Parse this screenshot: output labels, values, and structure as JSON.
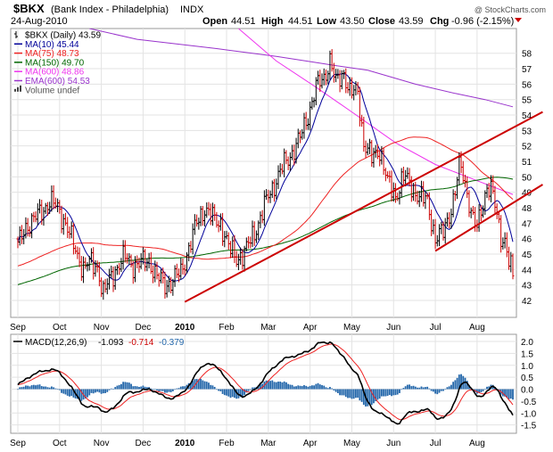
{
  "header": {
    "symbol": "$BKX",
    "name": "(Bank Index - Philadelphia)",
    "exchange": "INDX",
    "date": "24-Aug-2010",
    "open_label": "Open",
    "open": "44.51",
    "high_label": "High",
    "high": "44.51",
    "low_label": "Low",
    "low": "43.50",
    "close_label": "Close",
    "close": "43.59",
    "chg_label": "Chg",
    "chg": "-0.96 (-2.15%)"
  },
  "watermark": "@ StockCharts.com",
  "colors": {
    "price": "#000000",
    "down": "#cc0000",
    "ma10": "#000099",
    "ma75": "#ee2222",
    "ma150": "#006600",
    "ma600": "#ee33ee",
    "ema600": "#9933cc",
    "trend": "#cc0000",
    "macd_line": "#000000",
    "signal": "#ee2222",
    "hist": "#2266aa",
    "grid": "#e3e3e3"
  },
  "legend": [
    {
      "label": "$BKX (Daily) 43.59",
      "color": "#000000",
      "kind": "bar"
    },
    {
      "label": "MA(10) 45.44",
      "color": "#000099",
      "kind": "line"
    },
    {
      "label": "MA(75) 48.73",
      "color": "#ee2222",
      "kind": "line"
    },
    {
      "label": "MA(150) 49.70",
      "color": "#006600",
      "kind": "line"
    },
    {
      "label": "MA(600) 48.86",
      "color": "#ee33ee",
      "kind": "line"
    },
    {
      "label": "EMA(600) 54.53",
      "color": "#9933cc",
      "kind": "line"
    },
    {
      "label": "Volume undef",
      "color": "#555555",
      "kind": "vol"
    }
  ],
  "macd_header": {
    "label": "MACD(12,26,9)",
    "v1": "-1.093",
    "v2": "-0.714",
    "v3": "-0.379"
  },
  "chart_data": [
    {
      "type": "line",
      "title": "$BKX (Bank Index - Philadelphia) INDX",
      "x_tick_labels": [
        "Sep",
        "Oct",
        "Nov",
        "Dec",
        "2010",
        "Feb",
        "Mar",
        "Apr",
        "May",
        "Jun",
        "Jul",
        "Aug"
      ],
      "x_tick_pos": [
        0,
        21,
        42,
        63,
        84,
        105,
        126,
        147,
        168,
        189,
        210,
        231
      ],
      "x_range": [
        0,
        249
      ],
      "ylim": [
        40.9,
        59.6
      ],
      "y_ticks": [
        42,
        43,
        44,
        45,
        46,
        47,
        48,
        49,
        50,
        51,
        52,
        53,
        54,
        55,
        56,
        57,
        58
      ],
      "price_anchors": [
        [
          0,
          45.5
        ],
        [
          4,
          46.8
        ],
        [
          8,
          47.2
        ],
        [
          12,
          47.8
        ],
        [
          16,
          48.4
        ],
        [
          20,
          48.0
        ],
        [
          24,
          47.0
        ],
        [
          29,
          45.2
        ],
        [
          33,
          44.1
        ],
        [
          36,
          44.4
        ],
        [
          40,
          44.2
        ],
        [
          43,
          42.4
        ],
        [
          46,
          43.3
        ],
        [
          50,
          44.2
        ],
        [
          54,
          44.8
        ],
        [
          58,
          44.3
        ],
        [
          62,
          44.4
        ],
        [
          66,
          44.6
        ],
        [
          70,
          43.5
        ],
        [
          74,
          43.0
        ],
        [
          78,
          43.3
        ],
        [
          82,
          43.8
        ],
        [
          86,
          45.4
        ],
        [
          90,
          47.0
        ],
        [
          94,
          48.0
        ],
        [
          98,
          47.3
        ],
        [
          102,
          47.0
        ],
        [
          106,
          45.4
        ],
        [
          110,
          44.8
        ],
        [
          114,
          45.0
        ],
        [
          118,
          46.2
        ],
        [
          122,
          47.3
        ],
        [
          126,
          48.8
        ],
        [
          130,
          49.8
        ],
        [
          134,
          50.8
        ],
        [
          138,
          51.6
        ],
        [
          142,
          52.5
        ],
        [
          146,
          54.0
        ],
        [
          150,
          55.8
        ],
        [
          154,
          56.4
        ],
        [
          157,
          57.6
        ],
        [
          160,
          56.0
        ],
        [
          164,
          56.8
        ],
        [
          167,
          55.4
        ],
        [
          171,
          55.5
        ],
        [
          174,
          52.2
        ],
        [
          178,
          51.2
        ],
        [
          182,
          51.8
        ],
        [
          186,
          49.6
        ],
        [
          190,
          48.8
        ],
        [
          194,
          50.0
        ],
        [
          198,
          49.4
        ],
        [
          202,
          48.7
        ],
        [
          206,
          48.4
        ],
        [
          210,
          46.0
        ],
        [
          214,
          46.4
        ],
        [
          218,
          48.0
        ],
        [
          220,
          49.0
        ],
        [
          222,
          50.6
        ],
        [
          224,
          50.2
        ],
        [
          227,
          48.4
        ],
        [
          229,
          47.2
        ],
        [
          231,
          46.6
        ],
        [
          234,
          48.4
        ],
        [
          236,
          49.4
        ],
        [
          238,
          49.2
        ],
        [
          240,
          48.1
        ],
        [
          243,
          46.2
        ],
        [
          245,
          45.9
        ],
        [
          247,
          44.5
        ],
        [
          249,
          43.59
        ]
      ],
      "series": [
        {
          "name": "$BKX (Daily)",
          "last": 43.59
        },
        {
          "name": "MA(10)",
          "last": 45.44
        },
        {
          "name": "MA(75)",
          "last": 48.73
        },
        {
          "name": "MA(150)",
          "last": 49.7
        },
        {
          "name": "MA(600)",
          "last": 48.86,
          "points": [
            [
              111,
              59.6
            ],
            [
              130,
              57.5
            ],
            [
              150,
              55.8
            ],
            [
              168,
              54.2
            ],
            [
              190,
              52.2
            ],
            [
              210,
              50.8
            ],
            [
              230,
              49.8
            ],
            [
              249,
              48.86
            ]
          ]
        },
        {
          "name": "EMA(600)",
          "last": 54.53,
          "points": [
            [
              36,
              59.6
            ],
            [
              60,
              58.9
            ],
            [
              100,
              58.3
            ],
            [
              130,
              57.8
            ],
            [
              150,
              57.4
            ],
            [
              160,
              57.2
            ],
            [
              176,
              56.9
            ],
            [
              200,
              56.0
            ],
            [
              220,
              55.4
            ],
            [
              235,
              55.0
            ],
            [
              249,
              54.53
            ]
          ]
        }
      ],
      "trendlines": [
        [
          [
            84,
            41.9
          ],
          [
            264,
            54.2
          ]
        ],
        [
          [
            210,
            45.2
          ],
          [
            264,
            49.5
          ]
        ]
      ],
      "ylabel": "",
      "xlabel": ""
    },
    {
      "type": "line",
      "title": "MACD(12,26,9)",
      "ylim": [
        -1.85,
        2.3
      ],
      "y_ticks": [
        -1.5,
        -1.0,
        -0.5,
        0.0,
        0.5,
        1.0,
        1.5,
        2.0
      ],
      "y_tick_labels": [
        "-1.5",
        "-1.0",
        "-0.5",
        "0.0",
        "0.5",
        "1.0",
        "1.5",
        "2.0"
      ],
      "series": [
        {
          "name": "MACD",
          "last": -1.093
        },
        {
          "name": "Signal",
          "last": -0.714
        },
        {
          "name": "Histogram",
          "last": -0.379
        }
      ]
    }
  ]
}
